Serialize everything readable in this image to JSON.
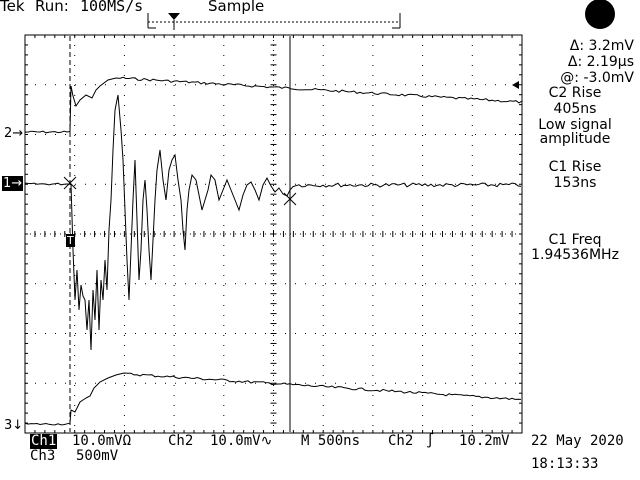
{
  "header": {
    "brand": "Tek",
    "run_status": "Run:",
    "sample_rate": "100MS/s",
    "acq_mode": "Sample"
  },
  "readouts": {
    "delta_v": "Δ: 3.2mV",
    "delta_t": "Δ: 2.19μs",
    "at_v": "@: -3.0mV",
    "c2_rise_label": "C2 Rise",
    "c2_rise_value": "405ns",
    "c2_note_line1": "Low signal",
    "c2_note_line2": "amplitude",
    "c1_rise_label": "C1 Rise",
    "c1_rise_value": "153ns",
    "c1_freq_label": "C1 Freq",
    "c1_freq_value": "1.94536MHz"
  },
  "markers": {
    "ch2": "2→",
    "ch1": "1→",
    "ch3": "3↓",
    "trigger": "T"
  },
  "footer": {
    "ch1_label": "Ch1",
    "ch1_scale": "10.0mVΩ",
    "ch2_label": "Ch2",
    "ch2_scale": "10.0mV∿",
    "timebase": "M 500ns",
    "trig_src": "Ch2",
    "trig_slope": "∫",
    "trig_level": "10.2mV",
    "ch3_label": "Ch3",
    "ch3_scale": "500mV",
    "date": "22 May 2020",
    "time": "18:13:33"
  },
  "colors": {
    "background": "#ffffff",
    "trace": "#000000"
  },
  "icons": {
    "status": "filled-circle-icon"
  }
}
